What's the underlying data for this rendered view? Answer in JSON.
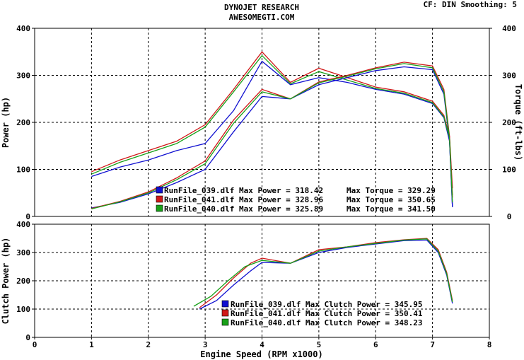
{
  "header": {
    "title": "DYNOJET RESEARCH",
    "subtitle": "AWESOMEGTI.COM",
    "info": "CF: DIN  Smoothing: 5"
  },
  "chart_data": [
    {
      "type": "line",
      "panel": "power-torque",
      "ylabel": "Power (hp)",
      "y2label": "Torque (ft-lbs)",
      "ylim": [
        0,
        400
      ],
      "y2lim": [
        0,
        400
      ],
      "xlim": [
        0,
        8
      ],
      "yticks": [
        "400",
        "300",
        "200",
        "100",
        "0"
      ],
      "y2ticks": [
        "400",
        "300",
        "200",
        "100",
        "0"
      ],
      "grid": true,
      "legend": [
        {
          "swatch": "#1010d0",
          "file": "RunFile_039.dlf",
          "mp_label": "Max Power",
          "mp": "318.42",
          "mt_label": "Max Torque",
          "mt": "329.29"
        },
        {
          "swatch": "#d01818",
          "file": "RunFile_041.dlf",
          "mp_label": "Max Power",
          "mp": "328.96",
          "mt_label": "Max Torque",
          "mt": "350.65"
        },
        {
          "swatch": "#18a018",
          "file": "RunFile_040.dlf",
          "mp_label": "Max Power",
          "mp": "325.89",
          "mt_label": "Max Torque",
          "mt": "341.50"
        }
      ],
      "series": [
        {
          "color": "#1010d0",
          "kind": "torque",
          "x": [
            1.0,
            1.5,
            2.0,
            2.5,
            3.0,
            3.5,
            4.0,
            4.5,
            5.0,
            5.5,
            6.0,
            6.5,
            7.0,
            7.2,
            7.3,
            7.35
          ],
          "y": [
            85,
            105,
            120,
            140,
            155,
            225,
            330,
            280,
            295,
            285,
            270,
            260,
            240,
            210,
            160,
            20
          ]
        },
        {
          "color": "#d01818",
          "kind": "torque",
          "x": [
            1.0,
            1.5,
            2.0,
            2.5,
            3.0,
            3.5,
            4.0,
            4.5,
            5.0,
            5.5,
            6.0,
            6.5,
            7.0,
            7.2,
            7.3,
            7.35
          ],
          "y": [
            95,
            120,
            140,
            160,
            195,
            270,
            350,
            285,
            315,
            295,
            275,
            265,
            245,
            215,
            170,
            60
          ]
        },
        {
          "color": "#18a018",
          "kind": "torque",
          "x": [
            1.0,
            1.5,
            2.0,
            2.5,
            3.0,
            3.5,
            4.0,
            4.5,
            5.0,
            5.5,
            6.0,
            6.5,
            7.0,
            7.2,
            7.3,
            7.35
          ],
          "y": [
            90,
            115,
            135,
            155,
            190,
            265,
            342,
            282,
            308,
            290,
            272,
            262,
            242,
            212,
            165,
            45
          ]
        },
        {
          "color": "#1010d0",
          "kind": "power",
          "x": [
            1.0,
            1.5,
            2.0,
            2.5,
            3.0,
            3.5,
            4.0,
            4.5,
            5.0,
            5.5,
            6.0,
            6.5,
            7.0,
            7.2,
            7.3,
            7.35
          ],
          "y": [
            18,
            30,
            48,
            72,
            100,
            180,
            255,
            250,
            280,
            295,
            310,
            318,
            312,
            260,
            160,
            20
          ]
        },
        {
          "color": "#d01818",
          "kind": "power",
          "x": [
            1.0,
            1.5,
            2.0,
            2.5,
            3.0,
            3.5,
            4.0,
            4.5,
            5.0,
            5.5,
            6.0,
            6.5,
            7.0,
            7.2,
            7.3,
            7.35
          ],
          "y": [
            17,
            32,
            52,
            82,
            118,
            205,
            270,
            250,
            286,
            300,
            316,
            328,
            320,
            270,
            170,
            40
          ]
        },
        {
          "color": "#18a018",
          "kind": "power",
          "x": [
            1.0,
            1.5,
            2.0,
            2.5,
            3.0,
            3.5,
            4.0,
            4.5,
            5.0,
            5.5,
            6.0,
            6.5,
            7.0,
            7.2,
            7.3,
            7.35
          ],
          "y": [
            16,
            31,
            50,
            78,
            112,
            198,
            265,
            250,
            284,
            298,
            314,
            325,
            316,
            265,
            165,
            30
          ]
        }
      ]
    },
    {
      "type": "line",
      "panel": "clutch-power",
      "ylabel": "Clutch Power (hp)",
      "xlabel": "Engine Speed (RPM x1000)",
      "ylim": [
        0,
        400
      ],
      "xlim": [
        0,
        8
      ],
      "yticks": [
        "400",
        "300",
        "200",
        "100",
        "0"
      ],
      "xticks": [
        "0",
        "1",
        "2",
        "3",
        "4",
        "5",
        "6",
        "7",
        "8"
      ],
      "grid": true,
      "legend": [
        {
          "swatch": "#1010d0",
          "file": "RunFile_039.dlf",
          "label": "Max Clutch Power",
          "value": "345.95"
        },
        {
          "swatch": "#d01818",
          "file": "RunFile_041.dlf",
          "label": "Max Clutch Power",
          "value": "350.41"
        },
        {
          "swatch": "#18a018",
          "file": "RunFile_040.dlf",
          "label": "Max Clutch Power",
          "value": "348.23"
        }
      ],
      "series": [
        {
          "color": "#1010d0",
          "x": [
            2.9,
            3.2,
            3.5,
            3.8,
            4.0,
            4.5,
            5.0,
            5.5,
            6.0,
            6.5,
            6.9,
            7.1,
            7.25,
            7.35
          ],
          "y": [
            100,
            130,
            185,
            235,
            265,
            262,
            300,
            318,
            330,
            342,
            344,
            300,
            220,
            120
          ]
        },
        {
          "color": "#d01818",
          "x": [
            2.9,
            3.2,
            3.5,
            3.8,
            4.0,
            4.5,
            5.0,
            5.5,
            6.0,
            6.5,
            6.9,
            7.1,
            7.25,
            7.35
          ],
          "y": [
            105,
            150,
            210,
            262,
            280,
            262,
            310,
            320,
            335,
            345,
            350,
            310,
            230,
            130
          ]
        },
        {
          "color": "#18a018",
          "x": [
            2.8,
            3.1,
            3.4,
            3.7,
            4.0,
            4.5,
            5.0,
            5.5,
            6.0,
            6.5,
            6.9,
            7.1,
            7.25,
            7.35
          ],
          "y": [
            110,
            145,
            200,
            250,
            272,
            262,
            305,
            320,
            332,
            344,
            348,
            305,
            225,
            125
          ]
        }
      ]
    }
  ]
}
